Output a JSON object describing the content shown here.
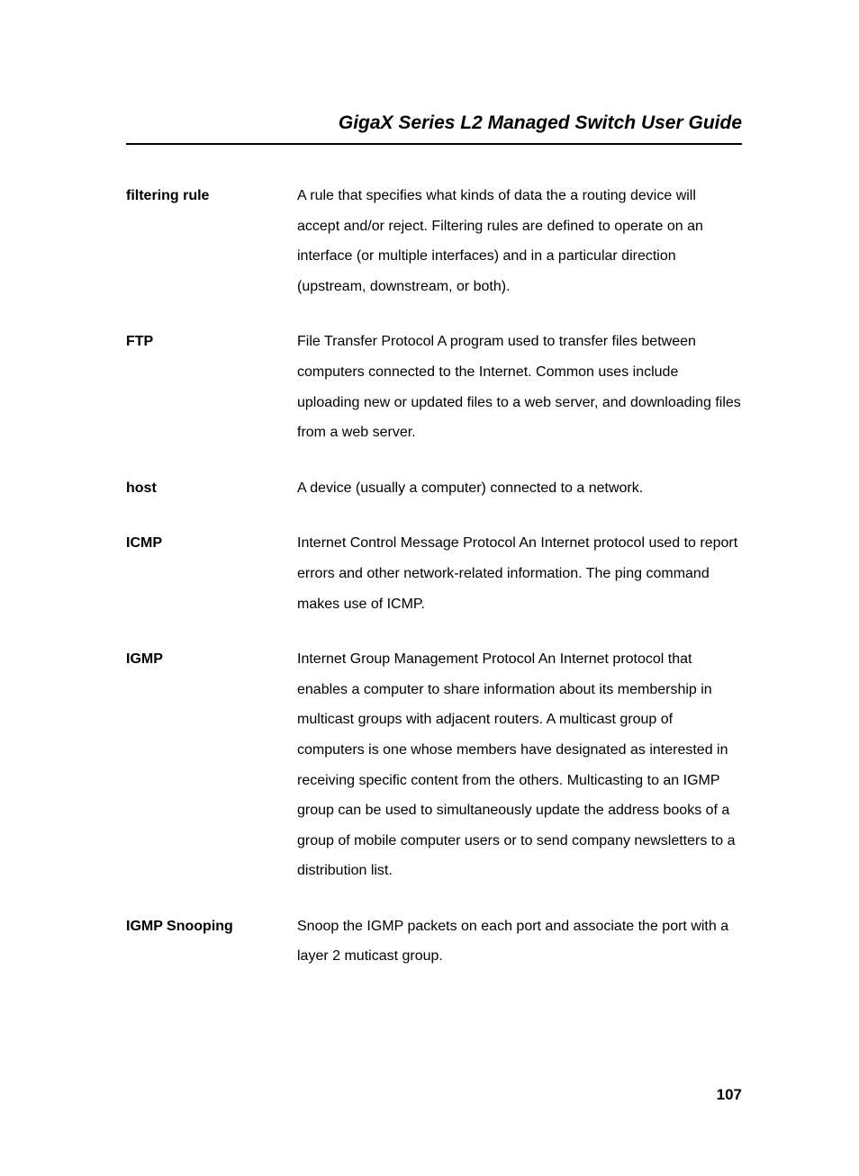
{
  "header": {
    "title": "GigaX Series L2 Managed Switch User Guide"
  },
  "glossary": [
    {
      "term": "filtering rule",
      "definition": "A rule that specifies what kinds of data the a routing device will accept and/or reject. Filtering rules are defined to operate on an interface (or multiple interfaces) and in a particular direction (upstream, downstream, or both)."
    },
    {
      "term": "FTP",
      "definition": "File Transfer Protocol\nA program used to transfer files between computers connected to the Internet. Common uses include uploading new or updated files to a web server, and downloading files from a web server."
    },
    {
      "term": "host",
      "definition": "A device (usually a computer) connected to a network."
    },
    {
      "term": "ICMP",
      "definition": "Internet Control Message Protocol\nAn Internet protocol used to report errors and other network-related information. The ping command makes use of ICMP."
    },
    {
      "term": "IGMP",
      "definition": "Internet Group Management Protocol\nAn Internet protocol that enables a computer to share information about its membership in multicast groups with adjacent routers. A multicast group of computers is one whose members have designated as interested in receiving specific content from the others. Multicasting to an IGMP group can be used to simultaneously update the address books of a group of mobile computer users or to send company newsletters to a distribution list."
    },
    {
      "term": "IGMP Snooping",
      "definition": "Snoop the IGMP packets on each port and associate the port with a layer 2 muticast group."
    }
  ],
  "page_number": "107"
}
